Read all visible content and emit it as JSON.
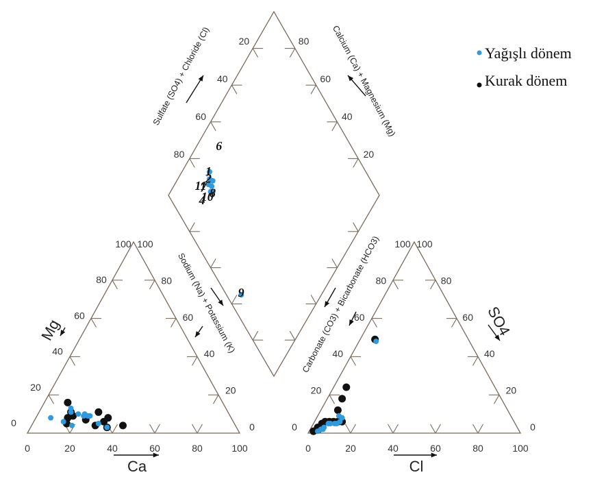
{
  "chart_data": {
    "type": "scatter",
    "subtype": "piper-diagram",
    "legend": {
      "placement": "top-right",
      "items": [
        {
          "label": "Yağışlı dönem",
          "color": "#3399dd"
        },
        {
          "label": "Kurak dönem",
          "color": "#111111"
        }
      ]
    },
    "colors": {
      "wet": "#3399dd",
      "dry": "#111111",
      "frame": "#7a6a5a"
    },
    "axis_titles": {
      "diamond_upper_left": "Sulfate (SO4) + Chloride (Cl)",
      "diamond_upper_right": "Calcium (Ca) + Magnesium (Mg)",
      "diamond_lower_left": "Sodium (Na) + Potassium (K)",
      "diamond_lower_right": "Carbonate (CO3) + Bicarbonate (HCO3)",
      "cation_left": "Mg",
      "cation_bottom": "Ca",
      "anion_right": "SO4",
      "anion_bottom": "Cl"
    },
    "tick_labels": {
      "cation_bottom": [
        "0",
        "20",
        "40",
        "60",
        "80",
        "100"
      ],
      "cation_left": [
        "0",
        "20",
        "40",
        "60",
        "80",
        "100"
      ],
      "cation_right": [
        "100",
        "80",
        "60",
        "40",
        "20",
        "0"
      ],
      "anion_bottom": [
        "0",
        "20",
        "40",
        "60",
        "80",
        "100"
      ],
      "anion_left": [
        "0",
        "20",
        "40",
        "60",
        "80",
        "100"
      ],
      "anion_right": [
        "100",
        "80",
        "60",
        "40",
        "20",
        "0"
      ],
      "diamond_upper_left": [
        "20",
        "40",
        "60",
        "80"
      ],
      "diamond_upper_right": [
        "80",
        "60",
        "40",
        "20"
      ]
    },
    "cation_points": {
      "wet": [
        {
          "ca": 61,
          "mg": 3
        },
        {
          "ca": 66,
          "mg": 9
        },
        {
          "ca": 67,
          "mg": 9
        },
        {
          "ca": 69,
          "mg": 9
        },
        {
          "ca": 68,
          "mg": 10
        },
        {
          "ca": 71,
          "mg": 10
        },
        {
          "ca": 73,
          "mg": 13
        },
        {
          "ca": 77,
          "mg": 4
        },
        {
          "ca": 80,
          "mg": 6
        },
        {
          "ca": 85,
          "mg": 8
        },
        {
          "ca": 74,
          "mg": 11
        },
        {
          "ca": 64,
          "mg": 5
        }
      ],
      "dry": [
        {
          "ca": 53,
          "mg": 4
        },
        {
          "ca": 58,
          "mg": 8
        },
        {
          "ca": 61,
          "mg": 11
        },
        {
          "ca": 61,
          "mg": 3
        },
        {
          "ca": 61,
          "mg": 6
        },
        {
          "ca": 66,
          "mg": 4
        },
        {
          "ca": 69,
          "mg": 7
        },
        {
          "ca": 73,
          "mg": 16
        },
        {
          "ca": 74,
          "mg": 9
        },
        {
          "ca": 74,
          "mg": 11
        },
        {
          "ca": 77,
          "mg": 8
        },
        {
          "ca": 79,
          "mg": 5
        }
      ]
    },
    "anion_points": {
      "wet": [
        {
          "cl": 4,
          "so4": 1
        },
        {
          "cl": 5,
          "so4": 2
        },
        {
          "cl": 6,
          "so4": 3
        },
        {
          "cl": 6,
          "so4": 2
        },
        {
          "cl": 7,
          "so4": 5
        },
        {
          "cl": 8,
          "so4": 5
        },
        {
          "cl": 10,
          "so4": 5
        },
        {
          "cl": 11,
          "so4": 5
        },
        {
          "cl": 12,
          "so4": 6
        },
        {
          "cl": 10,
          "so4": 9
        },
        {
          "cl": 12,
          "so4": 8
        },
        {
          "cl": 8,
          "so4": 48
        }
      ],
      "dry": [
        {
          "cl": 2,
          "so4": 1
        },
        {
          "cl": 4,
          "so4": 2
        },
        {
          "cl": 3,
          "so4": 3
        },
        {
          "cl": 4,
          "so4": 5
        },
        {
          "cl": 5,
          "so4": 6
        },
        {
          "cl": 7,
          "so4": 6
        },
        {
          "cl": 9,
          "so4": 6
        },
        {
          "cl": 11,
          "so4": 6
        },
        {
          "cl": 13,
          "so4": 6
        },
        {
          "cl": 8,
          "so4": 12
        },
        {
          "cl": 7,
          "so4": 18
        },
        {
          "cl": 6,
          "so4": 24
        },
        {
          "cl": 7,
          "so4": 49
        }
      ]
    },
    "diamond_points": {
      "wet": [
        {
          "so4cl": 38,
          "nak": 7
        },
        {
          "so4cl": 80,
          "nak": 22
        },
        {
          "so4cl": 81,
          "nak": 21
        },
        {
          "so4cl": 82,
          "nak": 23
        },
        {
          "so4cl": 84,
          "nak": 22
        },
        {
          "so4cl": 83,
          "nak": 25
        },
        {
          "so4cl": 85,
          "nak": 24
        },
        {
          "so4cl": 87,
          "nak": 26
        }
      ],
      "dry": []
    },
    "sample_labels": [
      {
        "text": "9",
        "so4cl": 39,
        "nak": 5
      },
      {
        "text": "10",
        "so4cl": 83,
        "nak": 14
      },
      {
        "text": "11",
        "so4cl": 89,
        "nak": 14
      },
      {
        "text": "7",
        "so4cl": 86,
        "nak": 16
      },
      {
        "text": "8",
        "so4cl": 80,
        "nak": 19
      },
      {
        "text": "2",
        "so4cl": 86,
        "nak": 21
      },
      {
        "text": "1",
        "so4cl": 88,
        "nak": 23
      },
      {
        "text": "6",
        "so4cl": 90,
        "nak": 35
      },
      {
        "text": "4",
        "so4cl": 83,
        "nak": 12
      }
    ]
  }
}
